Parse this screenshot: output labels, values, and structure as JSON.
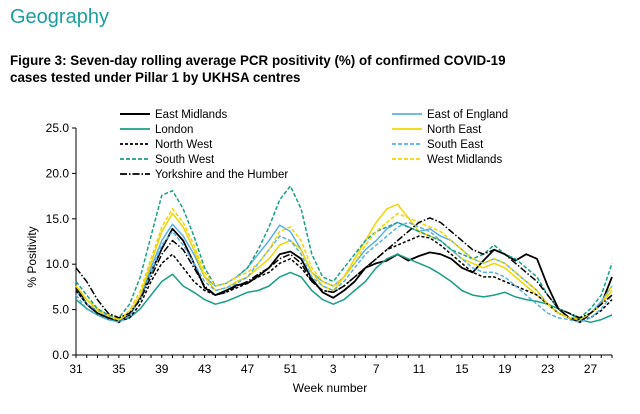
{
  "section": {
    "title": "Geography"
  },
  "figure": {
    "title_line1": "Figure 3: Seven-day rolling average PCR positivity (%) of confirmed COVID-19",
    "title_line2": "cases tested under Pillar 1 by UKHSA centres"
  },
  "chart_data": {
    "type": "line",
    "xlabel": "Week number",
    "ylabel": "% Positivity",
    "ylim": [
      0,
      25
    ],
    "yticks": [
      "0.0",
      "5.0",
      "10.0",
      "15.0",
      "20.0",
      "25.0"
    ],
    "xticks": [
      "31",
      "35",
      "39",
      "43",
      "47",
      "51",
      "3",
      "7",
      "11",
      "15",
      "19",
      "23",
      "27"
    ],
    "x": [
      "31",
      "32",
      "33",
      "34",
      "35",
      "36",
      "37",
      "38",
      "39",
      "40",
      "41",
      "42",
      "43",
      "44",
      "45",
      "46",
      "47",
      "48",
      "49",
      "50",
      "51",
      "52",
      "1",
      "2",
      "3",
      "4",
      "5",
      "6",
      "7",
      "8",
      "9",
      "10",
      "11",
      "12",
      "13",
      "14",
      "15",
      "16",
      "17",
      "18",
      "19",
      "20",
      "21",
      "22",
      "23",
      "24",
      "25",
      "26",
      "27",
      "28",
      "29"
    ],
    "series": [
      {
        "name": "East Midlands",
        "color": "#000000",
        "dash": "solid",
        "width": 1.8,
        "values": [
          7.5,
          5.6,
          4.6,
          4.1,
          3.6,
          4.4,
          6.4,
          9.1,
          11.7,
          13.9,
          12.6,
          10.1,
          7.4,
          6.6,
          7.1,
          7.7,
          7.9,
          8.7,
          9.6,
          11.1,
          11.4,
          10.6,
          8.4,
          6.9,
          6.3,
          7.1,
          8.1,
          9.6,
          10.1,
          10.4,
          11.1,
          10.4,
          10.9,
          11.3,
          11.1,
          10.6,
          9.6,
          9.1,
          10.4,
          11.6,
          11.1,
          10.4,
          11.1,
          10.6,
          7.6,
          5.1,
          4.1,
          3.6,
          4.6,
          5.6,
          8.6
        ]
      },
      {
        "name": "East of England",
        "color": "#5ab0e6",
        "dash": "solid",
        "width": 1.5,
        "values": [
          7.1,
          5.6,
          4.9,
          4.3,
          3.9,
          4.6,
          6.6,
          9.6,
          12.6,
          14.4,
          13.1,
          11.1,
          8.6,
          7.6,
          7.9,
          8.6,
          9.6,
          11.1,
          12.6,
          14.3,
          13.6,
          11.6,
          9.1,
          8.1,
          7.6,
          8.6,
          10.1,
          11.6,
          12.6,
          13.9,
          14.6,
          14.1,
          13.6,
          13.9,
          13.1,
          12.6,
          11.6,
          10.6,
          10.1,
          10.6,
          10.1,
          9.1,
          8.1,
          7.1,
          5.6,
          4.6,
          4.1,
          3.9,
          4.6,
          5.9,
          7.6
        ]
      },
      {
        "name": "London",
        "color": "#1a9e87",
        "dash": "solid",
        "width": 1.5,
        "values": [
          6.1,
          5.1,
          4.4,
          3.9,
          3.7,
          4.1,
          5.1,
          6.6,
          8.1,
          8.9,
          7.6,
          6.9,
          6.1,
          5.6,
          5.9,
          6.4,
          6.9,
          7.1,
          7.6,
          8.6,
          9.1,
          8.6,
          7.1,
          6.1,
          5.6,
          6.1,
          7.1,
          8.1,
          9.6,
          10.6,
          11.1,
          10.6,
          10.1,
          9.6,
          8.9,
          8.1,
          7.1,
          6.6,
          6.4,
          6.6,
          6.9,
          6.4,
          6.1,
          5.9,
          5.6,
          5.1,
          4.6,
          3.9,
          3.6,
          3.9,
          4.4
        ]
      },
      {
        "name": "North East",
        "color": "#f2d500",
        "dash": "solid",
        "width": 1.5,
        "values": [
          7.6,
          6.1,
          5.1,
          4.4,
          3.9,
          4.6,
          6.6,
          10.1,
          13.6,
          15.6,
          14.1,
          11.6,
          8.6,
          7.1,
          7.4,
          8.1,
          8.6,
          9.6,
          10.6,
          12.1,
          12.6,
          11.6,
          9.1,
          7.6,
          7.1,
          8.6,
          10.6,
          12.6,
          14.6,
          16.1,
          16.6,
          15.1,
          13.6,
          13.1,
          12.6,
          11.6,
          10.6,
          10.1,
          9.6,
          10.1,
          9.6,
          8.6,
          7.6,
          6.6,
          5.6,
          4.6,
          4.1,
          3.9,
          4.6,
          5.6,
          7.1
        ]
      },
      {
        "name": "North West",
        "color": "#000000",
        "dash": "3,2",
        "width": 1.5,
        "values": [
          7.1,
          5.6,
          4.6,
          4.1,
          3.7,
          4.1,
          5.6,
          8.1,
          10.1,
          11.1,
          9.6,
          8.1,
          7.1,
          6.6,
          6.9,
          7.4,
          7.9,
          8.6,
          9.1,
          10.1,
          10.6,
          9.6,
          8.1,
          7.1,
          6.9,
          7.6,
          8.6,
          9.6,
          10.6,
          11.6,
          12.1,
          12.6,
          13.1,
          12.9,
          12.1,
          11.1,
          10.1,
          9.1,
          8.6,
          8.6,
          8.1,
          7.6,
          7.1,
          6.6,
          5.6,
          4.6,
          4.1,
          3.9,
          4.1,
          4.9,
          6.1
        ]
      },
      {
        "name": "South East",
        "color": "#5ab0e6",
        "dash": "4,2",
        "width": 1.5,
        "values": [
          6.6,
          5.1,
          4.4,
          3.9,
          3.6,
          4.3,
          6.1,
          9.1,
          12.1,
          13.6,
          12.1,
          10.1,
          8.1,
          7.1,
          7.4,
          7.9,
          8.6,
          10.1,
          11.6,
          13.1,
          12.6,
          11.1,
          8.6,
          7.6,
          7.1,
          8.1,
          9.6,
          11.1,
          12.1,
          13.1,
          14.1,
          14.6,
          14.1,
          13.6,
          12.6,
          11.6,
          10.6,
          9.6,
          9.1,
          9.1,
          8.6,
          7.6,
          6.6,
          5.6,
          4.6,
          4.1,
          3.9,
          3.6,
          4.1,
          5.1,
          6.6
        ]
      },
      {
        "name": "South West",
        "color": "#1a9e87",
        "dash": "4,2",
        "width": 1.5,
        "values": [
          8.1,
          6.6,
          5.1,
          4.4,
          4.1,
          5.6,
          8.6,
          13.1,
          17.6,
          18.1,
          16.1,
          13.1,
          9.6,
          7.6,
          7.9,
          8.6,
          9.6,
          11.6,
          14.1,
          17.1,
          18.6,
          16.1,
          11.1,
          8.6,
          8.1,
          9.6,
          11.1,
          12.6,
          13.6,
          14.1,
          14.6,
          14.1,
          13.6,
          13.1,
          12.6,
          11.6,
          11.1,
          10.6,
          11.1,
          12.1,
          11.1,
          10.6,
          9.6,
          8.6,
          6.6,
          5.1,
          4.6,
          4.1,
          5.1,
          6.6,
          10.1
        ]
      },
      {
        "name": "West Midlands",
        "color": "#f2d500",
        "dash": "4,2",
        "width": 1.5,
        "values": [
          7.6,
          6.1,
          4.9,
          4.3,
          3.9,
          4.9,
          7.1,
          10.6,
          14.1,
          16.1,
          14.6,
          12.1,
          9.1,
          7.6,
          7.9,
          8.6,
          9.1,
          10.1,
          11.6,
          13.6,
          14.1,
          12.6,
          9.6,
          8.1,
          7.6,
          8.6,
          10.1,
          12.1,
          13.6,
          14.6,
          15.6,
          15.1,
          14.6,
          14.1,
          13.6,
          12.6,
          11.6,
          10.6,
          10.1,
          10.6,
          10.1,
          9.1,
          8.1,
          7.1,
          5.6,
          4.6,
          4.1,
          3.9,
          4.6,
          5.6,
          7.6
        ]
      },
      {
        "name": "Yorkshire and the Humber",
        "color": "#000000",
        "dash": "7,2,1.5,2",
        "width": 1.5,
        "values": [
          9.6,
          8.1,
          6.1,
          4.6,
          4.1,
          4.6,
          6.1,
          8.6,
          11.1,
          12.6,
          11.6,
          9.6,
          7.6,
          6.6,
          6.9,
          7.6,
          8.1,
          8.9,
          9.6,
          10.6,
          11.1,
          10.1,
          8.1,
          7.1,
          6.9,
          7.6,
          8.6,
          9.6,
          10.6,
          11.6,
          12.6,
          13.6,
          14.6,
          15.1,
          14.6,
          13.6,
          12.6,
          11.6,
          11.1,
          11.6,
          11.1,
          10.1,
          9.1,
          8.1,
          6.6,
          5.1,
          4.6,
          4.1,
          4.6,
          5.6,
          6.6
        ]
      }
    ]
  }
}
